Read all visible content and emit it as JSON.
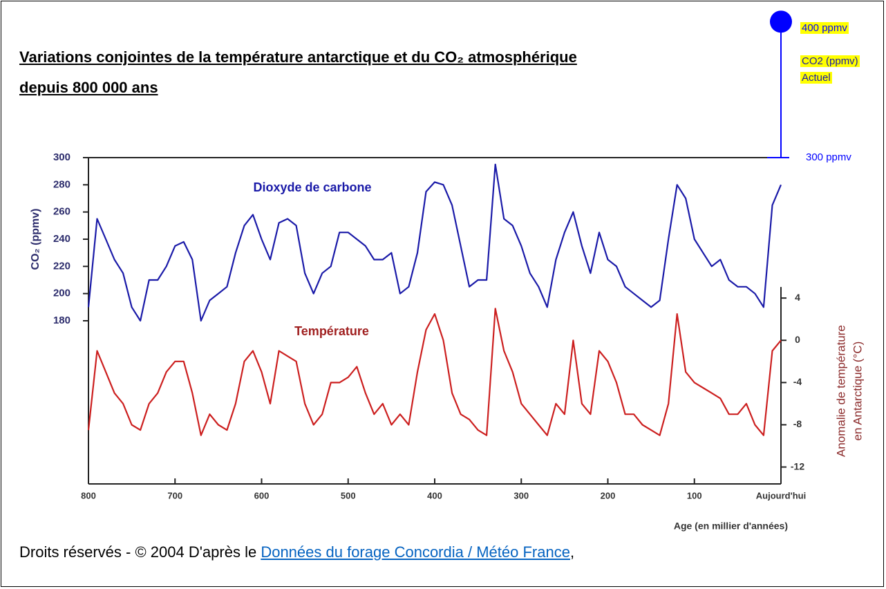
{
  "chart_data": {
    "type": "line",
    "title": "Variations conjointes de la température antarctique et du CO₂ atmosphérique",
    "title_line2": "depuis 800 000 ans",
    "xlabel": "Age (en millier d'années)",
    "ylabel": "CO₂ (ppmv)",
    "y2label": [
      "Anomalie de température",
      "en Antarctique (°C)"
    ],
    "annotations": {
      "co2": "Dioxyde de carbone",
      "temperature": "Température"
    },
    "current_co2": {
      "value": 400,
      "label": "400 ppmv",
      "lines": [
        "CO2 (ppmv)",
        "Actuel"
      ],
      "color": "#0000ff"
    },
    "reference_co2": {
      "value": 300,
      "label": "300 ppmv"
    },
    "x": [
      800,
      790,
      780,
      770,
      760,
      750,
      740,
      730,
      720,
      710,
      700,
      690,
      680,
      670,
      660,
      650,
      640,
      630,
      620,
      610,
      600,
      590,
      580,
      570,
      560,
      550,
      540,
      530,
      520,
      510,
      500,
      490,
      480,
      470,
      460,
      450,
      440,
      430,
      420,
      410,
      400,
      390,
      380,
      370,
      360,
      350,
      340,
      330,
      320,
      310,
      300,
      290,
      280,
      270,
      260,
      250,
      240,
      230,
      220,
      210,
      200,
      190,
      180,
      170,
      160,
      150,
      140,
      130,
      120,
      110,
      100,
      90,
      80,
      70,
      60,
      50,
      40,
      30,
      20,
      10,
      0
    ],
    "xlim": [
      800,
      0
    ],
    "xticks": [
      800,
      700,
      600,
      500,
      400,
      300,
      200,
      100,
      {
        "value": 0,
        "label": "Aujourd'hui"
      }
    ],
    "ylim": [
      60,
      300
    ],
    "yticks": [
      180,
      200,
      220,
      240,
      260,
      280,
      300
    ],
    "y2lim": [
      -13.6,
      17.3
    ],
    "y2ticks": [
      4,
      0,
      -4,
      -8,
      -12
    ],
    "series": [
      {
        "name": "Dioxyde de carbone",
        "color": "#1a1aa8",
        "values": [
          190,
          255,
          240,
          225,
          215,
          190,
          180,
          210,
          210,
          220,
          235,
          238,
          225,
          180,
          195,
          200,
          205,
          230,
          250,
          258,
          240,
          225,
          252,
          255,
          250,
          215,
          200,
          215,
          220,
          245,
          245,
          240,
          235,
          225,
          225,
          230,
          200,
          205,
          230,
          275,
          282,
          280,
          265,
          235,
          205,
          210,
          210,
          295,
          255,
          250,
          235,
          215,
          205,
          190,
          225,
          245,
          260,
          235,
          215,
          245,
          225,
          220,
          205,
          200,
          195,
          190,
          195,
          240,
          280,
          270,
          240,
          230,
          220,
          225,
          210,
          205,
          205,
          200,
          190,
          265,
          280
        ]
      },
      {
        "name": "Température",
        "color": "#cc1f1f",
        "axis": "y2",
        "values": [
          -8.5,
          -1,
          -3,
          -5,
          -6,
          -8,
          -8.5,
          -6,
          -5,
          -3,
          -2,
          -2,
          -5,
          -9,
          -7,
          -8,
          -8.5,
          -6,
          -2,
          -1,
          -3,
          -6,
          -1,
          -1.5,
          -2,
          -6,
          -8,
          -7,
          -4,
          -4,
          -3.5,
          -2.5,
          -5,
          -7,
          -6,
          -8,
          -7,
          -8,
          -3,
          1,
          2.5,
          0,
          -5,
          -7,
          -7.5,
          -8.5,
          -9,
          3,
          -1,
          -3,
          -6,
          -7,
          -8,
          -9,
          -6,
          -7,
          0,
          -6,
          -7,
          -1,
          -2,
          -4,
          -7,
          -7,
          -8,
          -8.5,
          -9,
          -6,
          2.5,
          -3,
          -4,
          -4.5,
          -5,
          -5.5,
          -7,
          -7,
          -6,
          -8,
          -9,
          -1,
          0
        ]
      }
    ]
  },
  "footer": {
    "text": "Droits réservés - © 2004 D'après le ",
    "link": "Données du forage Concordia / Météo France",
    "after": ","
  }
}
